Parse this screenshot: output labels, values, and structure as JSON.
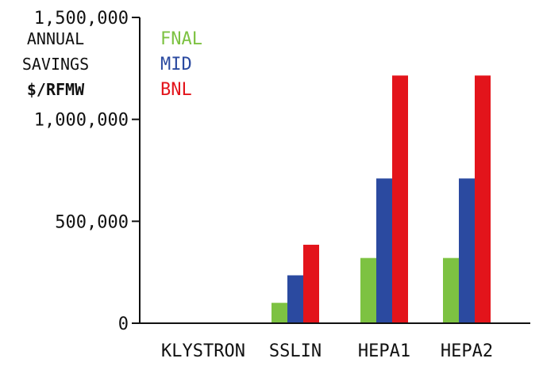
{
  "chart_data": {
    "type": "bar",
    "categories": [
      "KLYSTRON",
      "SSLIN",
      "HEPA1",
      "HEPA2"
    ],
    "series": [
      {
        "name": "FNAL",
        "color": "#7dc242",
        "values": [
          0,
          100000,
          320000,
          320000
        ]
      },
      {
        "name": "MID",
        "color": "#2b4aa0",
        "values": [
          0,
          235000,
          710000,
          710000
        ]
      },
      {
        "name": "BNL",
        "color": "#e3141b",
        "values": [
          0,
          385000,
          1215000,
          1215000
        ]
      }
    ],
    "ylabel_lines": [
      "ANNUAL",
      "SAVINGS",
      "$/RFMW"
    ],
    "yticks": [
      0,
      500000,
      1000000,
      1500000
    ],
    "ytick_labels": [
      "0",
      "500,000",
      "1,000,000",
      "1,500,000"
    ],
    "ylim": [
      0,
      1500000
    ],
    "legend_position": "top-left",
    "grid": false,
    "axis_color": "#111111"
  }
}
